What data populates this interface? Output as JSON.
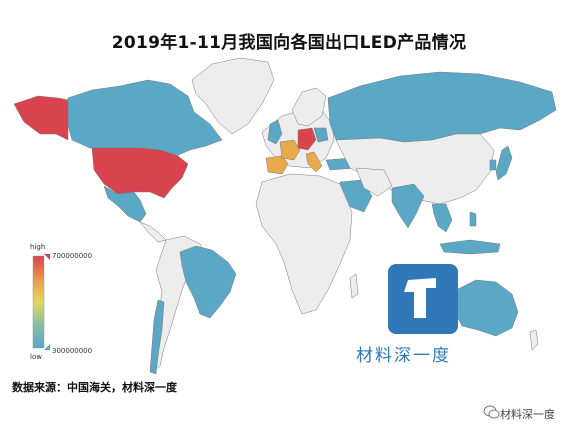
{
  "title": "2019年1-11月我国向各国出口LED产品情况",
  "legend": {
    "high_label": "high",
    "low_label": "low",
    "max_value": "700000000",
    "min_value": "300000000",
    "colors": [
      "#d9434e",
      "#e9a94a",
      "#e3d85c",
      "#86bda6",
      "#5aa8c6"
    ]
  },
  "source": "数据来源：中国海关，材料深一度",
  "watermark": {
    "text": "材料深一度",
    "logo_color": "#2f79b9"
  },
  "footer": "材料深一度",
  "color_key": {
    "high": "#d9434e",
    "upper_mid": "#e9a94a",
    "mid": "#e3d85c",
    "low": "#5aa8c6",
    "no_data": "#ededed"
  },
  "highlighted_regions": [
    {
      "name": "United States",
      "level": "high"
    },
    {
      "name": "Alaska",
      "level": "high"
    },
    {
      "name": "Germany",
      "level": "high"
    },
    {
      "name": "France",
      "level": "upper_mid"
    },
    {
      "name": "Italy",
      "level": "upper_mid"
    },
    {
      "name": "Spain",
      "level": "upper_mid"
    },
    {
      "name": "Canada",
      "level": "low"
    },
    {
      "name": "Mexico",
      "level": "low"
    },
    {
      "name": "Brazil",
      "level": "low"
    },
    {
      "name": "Chile",
      "level": "low"
    },
    {
      "name": "Russia",
      "level": "low"
    },
    {
      "name": "United Kingdom",
      "level": "low"
    },
    {
      "name": "Netherlands",
      "level": "low"
    },
    {
      "name": "Poland",
      "level": "low"
    },
    {
      "name": "Turkey",
      "level": "low"
    },
    {
      "name": "Saudi Arabia",
      "level": "low"
    },
    {
      "name": "United Arab Emirates",
      "level": "low"
    },
    {
      "name": "India",
      "level": "low"
    },
    {
      "name": "Thailand",
      "level": "low"
    },
    {
      "name": "Vietnam",
      "level": "low"
    },
    {
      "name": "Malaysia",
      "level": "low"
    },
    {
      "name": "Indonesia",
      "level": "low"
    },
    {
      "name": "Philippines",
      "level": "low"
    },
    {
      "name": "South Korea",
      "level": "low"
    },
    {
      "name": "Japan",
      "level": "low"
    },
    {
      "name": "Australia",
      "level": "low"
    }
  ]
}
